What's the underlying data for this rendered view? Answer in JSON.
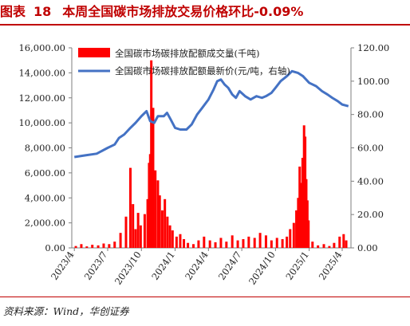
{
  "header": {
    "prefix": "图表",
    "number": "18",
    "title": "本周全国碳市场排放交易价格环比-0.09%"
  },
  "source": "资料来源：Wind，华创证券",
  "colors": {
    "volume": "#ff0000",
    "price": "#4472c4",
    "title": "#c00000"
  },
  "chart_data": {
    "type": "bar+line",
    "x_ticks": [
      "2023/4",
      "2023/7",
      "2023/10",
      "2024/1",
      "2024/4",
      "2024/7",
      "2024/10",
      "2025/1",
      "2025/4"
    ],
    "left_axis": {
      "ticks": [
        "0.00",
        "2,000.00",
        "4,000.00",
        "6,000.00",
        "8,000.00",
        "10,000.00",
        "12,000.00",
        "14,000.00",
        "16,000.00"
      ],
      "ylim": [
        0,
        16000
      ]
    },
    "right_axis": {
      "ticks": [
        "0.00",
        "20.00",
        "40.00",
        "60.00",
        "80.00",
        "100.00",
        "120.00"
      ],
      "ylim": [
        0,
        120
      ]
    },
    "series": [
      {
        "name": "全国碳市场碳排放配额成交量(千吨)",
        "type": "bar",
        "axis": "left",
        "points": [
          [
            "2023-04-05",
            150
          ],
          [
            "2023-04-20",
            300
          ],
          [
            "2023-05-05",
            120
          ],
          [
            "2023-05-20",
            250
          ],
          [
            "2023-06-05",
            200
          ],
          [
            "2023-06-20",
            350
          ],
          [
            "2023-07-05",
            300
          ],
          [
            "2023-07-20",
            500
          ],
          [
            "2023-08-05",
            1200
          ],
          [
            "2023-08-20",
            2500
          ],
          [
            "2023-09-01",
            6400
          ],
          [
            "2023-09-08",
            3500
          ],
          [
            "2023-09-15",
            1500
          ],
          [
            "2023-09-22",
            2800
          ],
          [
            "2023-09-29",
            1800
          ],
          [
            "2023-10-10",
            2700
          ],
          [
            "2023-10-18",
            3900
          ],
          [
            "2023-10-22",
            6800
          ],
          [
            "2023-10-25",
            7500
          ],
          [
            "2023-10-28",
            15000
          ],
          [
            "2023-11-02",
            11200
          ],
          [
            "2023-11-08",
            6200
          ],
          [
            "2023-11-15",
            5400
          ],
          [
            "2023-11-20",
            4200
          ],
          [
            "2023-11-27",
            3000
          ],
          [
            "2023-12-04",
            3900
          ],
          [
            "2023-12-11",
            2500
          ],
          [
            "2023-12-18",
            1800
          ],
          [
            "2023-12-25",
            1400
          ],
          [
            "2024-01-05",
            900
          ],
          [
            "2024-01-15",
            1100
          ],
          [
            "2024-01-25",
            700
          ],
          [
            "2024-02-05",
            400
          ],
          [
            "2024-02-20",
            300
          ],
          [
            "2024-03-05",
            600
          ],
          [
            "2024-03-20",
            900
          ],
          [
            "2024-04-05",
            600
          ],
          [
            "2024-04-20",
            450
          ],
          [
            "2024-05-05",
            800
          ],
          [
            "2024-05-20",
            500
          ],
          [
            "2024-06-05",
            1000
          ],
          [
            "2024-06-20",
            600
          ],
          [
            "2024-07-05",
            700
          ],
          [
            "2024-07-20",
            900
          ],
          [
            "2024-08-05",
            800
          ],
          [
            "2024-08-20",
            1200
          ],
          [
            "2024-09-05",
            1000
          ],
          [
            "2024-09-20",
            600
          ],
          [
            "2024-10-05",
            800
          ],
          [
            "2024-10-20",
            700
          ],
          [
            "2024-11-01",
            900
          ],
          [
            "2024-11-10",
            1500
          ],
          [
            "2024-11-20",
            2000
          ],
          [
            "2024-11-27",
            3000
          ],
          [
            "2024-12-02",
            4000
          ],
          [
            "2024-12-06",
            6500
          ],
          [
            "2024-12-10",
            5200
          ],
          [
            "2024-12-14",
            7200
          ],
          [
            "2024-12-18",
            9800
          ],
          [
            "2024-12-21",
            8900
          ],
          [
            "2024-12-24",
            5500
          ],
          [
            "2024-12-27",
            3800
          ],
          [
            "2024-12-30",
            2200
          ],
          [
            "2025-01-10",
            500
          ],
          [
            "2025-01-25",
            200
          ],
          [
            "2025-02-10",
            300
          ],
          [
            "2025-02-25",
            150
          ],
          [
            "2025-03-10",
            400
          ],
          [
            "2025-03-25",
            900
          ],
          [
            "2025-04-05",
            1100
          ],
          [
            "2025-04-12",
            600
          ]
        ]
      },
      {
        "name": "全国碳市场碳排放配额最新价(元/吨，右轴)",
        "type": "line",
        "axis": "right",
        "points": [
          [
            "2023-04-01",
            54.5
          ],
          [
            "2023-05-01",
            55.5
          ],
          [
            "2023-06-01",
            56.5
          ],
          [
            "2023-07-01",
            60
          ],
          [
            "2023-07-20",
            62
          ],
          [
            "2023-08-01",
            66
          ],
          [
            "2023-08-15",
            68
          ],
          [
            "2023-09-01",
            72
          ],
          [
            "2023-09-15",
            75
          ],
          [
            "2023-10-01",
            79
          ],
          [
            "2023-10-15",
            82
          ],
          [
            "2023-10-25",
            76
          ],
          [
            "2023-11-05",
            75
          ],
          [
            "2023-11-15",
            79
          ],
          [
            "2023-12-01",
            79
          ],
          [
            "2023-12-10",
            81
          ],
          [
            "2023-12-20",
            77
          ],
          [
            "2024-01-01",
            72
          ],
          [
            "2024-01-15",
            71
          ],
          [
            "2024-02-01",
            71
          ],
          [
            "2024-02-15",
            74
          ],
          [
            "2024-03-01",
            80
          ],
          [
            "2024-03-15",
            84
          ],
          [
            "2024-04-01",
            89
          ],
          [
            "2024-04-15",
            95
          ],
          [
            "2024-04-25",
            100
          ],
          [
            "2024-05-05",
            101
          ],
          [
            "2024-05-15",
            98
          ],
          [
            "2024-05-25",
            96
          ],
          [
            "2024-06-05",
            92
          ],
          [
            "2024-06-15",
            90
          ],
          [
            "2024-06-25",
            94
          ],
          [
            "2024-07-10",
            91
          ],
          [
            "2024-07-25",
            89
          ],
          [
            "2024-08-10",
            91
          ],
          [
            "2024-08-25",
            90
          ],
          [
            "2024-09-05",
            91
          ],
          [
            "2024-09-20",
            93
          ],
          [
            "2024-10-01",
            96
          ],
          [
            "2024-10-15",
            100
          ],
          [
            "2024-11-01",
            103
          ],
          [
            "2024-11-15",
            106
          ],
          [
            "2024-12-01",
            105
          ],
          [
            "2024-12-15",
            103
          ],
          [
            "2025-01-01",
            99
          ],
          [
            "2025-01-20",
            97
          ],
          [
            "2025-02-05",
            94
          ],
          [
            "2025-02-20",
            92
          ],
          [
            "2025-03-05",
            90
          ],
          [
            "2025-03-20",
            88
          ],
          [
            "2025-04-01",
            86
          ],
          [
            "2025-04-18",
            85
          ]
        ]
      }
    ],
    "x_domain": [
      "2023-03-25",
      "2025-04-25"
    ],
    "legend_position": "top-left, inside plot"
  }
}
